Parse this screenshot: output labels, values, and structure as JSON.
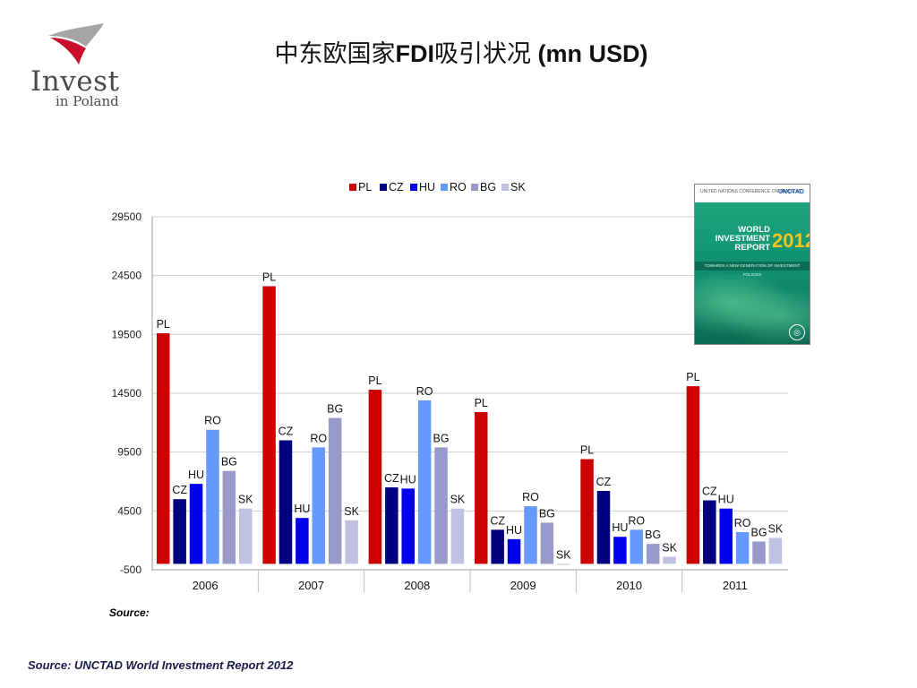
{
  "logo": {
    "main_text": "Invest",
    "sub_text": "in Poland",
    "colors": {
      "red": "#c8102e",
      "grey": "#9a9a9a",
      "text": "#4a4a4a"
    }
  },
  "title": {
    "part_a": "中东欧国家",
    "part_b": "FDI",
    "part_c": "吸引状况",
    "part_d": " (mn USD)"
  },
  "chart_data": {
    "type": "bar",
    "categories": [
      "2006",
      "2007",
      "2008",
      "2009",
      "2010",
      "2011"
    ],
    "ylim": [
      -500,
      29500
    ],
    "yticks": [
      -500,
      4500,
      9500,
      14500,
      19500,
      24500,
      29500
    ],
    "grid": true,
    "legend_position": "top",
    "series": [
      {
        "name": "PL",
        "color": "#cc0000",
        "values": [
          19600,
          23600,
          14800,
          12900,
          8900,
          15100
        ]
      },
      {
        "name": "CZ",
        "color": "#000080",
        "values": [
          5500,
          10500,
          6500,
          2900,
          6200,
          5400
        ]
      },
      {
        "name": "HU",
        "color": "#0000ee",
        "values": [
          6800,
          3900,
          6400,
          2100,
          2300,
          4700
        ]
      },
      {
        "name": "RO",
        "color": "#6699ff",
        "values": [
          11400,
          9900,
          13900,
          4900,
          2900,
          2700
        ]
      },
      {
        "name": "BG",
        "color": "#9999cc",
        "values": [
          7900,
          12400,
          9900,
          3500,
          1700,
          1900
        ]
      },
      {
        "name": "SK",
        "color": "#c0c0e0",
        "values": [
          4700,
          3700,
          4700,
          -50,
          600,
          2200
        ]
      }
    ]
  },
  "report_cover": {
    "top_text": "UNITED NATIONS CONFERENCE ON TRADE AND DEVELOPMENT",
    "org": "UNCTAD",
    "title": "WORLD INVESTMENT REPORT",
    "year": "2012",
    "subtitle": "TOWARDS A NEW GENERATION OF INVESTMENT POLICIES"
  },
  "source_small": "Source:",
  "source_main": "Source: UNCTAD World Investment Report 2012"
}
